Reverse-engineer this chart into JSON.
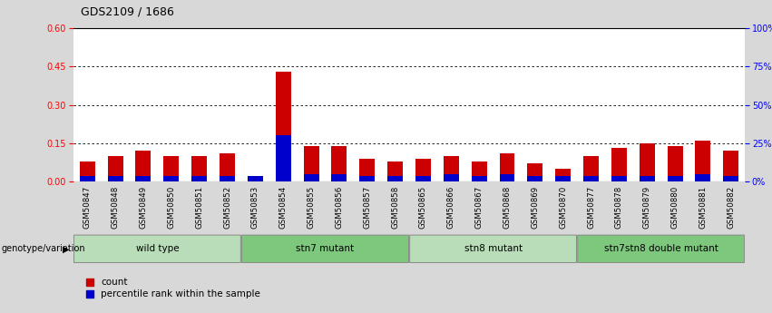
{
  "title": "GDS2109 / 1686",
  "samples": [
    "GSM50847",
    "GSM50848",
    "GSM50849",
    "GSM50850",
    "GSM50851",
    "GSM50852",
    "GSM50853",
    "GSM50854",
    "GSM50855",
    "GSM50856",
    "GSM50857",
    "GSM50858",
    "GSM50865",
    "GSM50866",
    "GSM50867",
    "GSM50868",
    "GSM50869",
    "GSM50870",
    "GSM50877",
    "GSM50878",
    "GSM50879",
    "GSM50880",
    "GSM50881",
    "GSM50882"
  ],
  "red_values": [
    0.08,
    0.1,
    0.12,
    0.1,
    0.1,
    0.11,
    0.0,
    0.43,
    0.14,
    0.14,
    0.09,
    0.08,
    0.09,
    0.1,
    0.08,
    0.11,
    0.07,
    0.05,
    0.1,
    0.13,
    0.15,
    0.14,
    0.16,
    0.12
  ],
  "blue_values": [
    0.02,
    0.02,
    0.02,
    0.02,
    0.02,
    0.02,
    0.02,
    0.18,
    0.03,
    0.03,
    0.02,
    0.02,
    0.02,
    0.03,
    0.02,
    0.03,
    0.02,
    0.02,
    0.02,
    0.02,
    0.02,
    0.02,
    0.03,
    0.02
  ],
  "groups": [
    {
      "label": "wild type",
      "start": 0,
      "end": 6,
      "color": "#b8ddb8"
    },
    {
      "label": "stn7 mutant",
      "start": 6,
      "end": 12,
      "color": "#7ec87e"
    },
    {
      "label": "stn8 mutant",
      "start": 12,
      "end": 18,
      "color": "#b8ddb8"
    },
    {
      "label": "stn7stn8 double mutant",
      "start": 18,
      "end": 24,
      "color": "#7ec87e"
    }
  ],
  "ylim_left": [
    0,
    0.6
  ],
  "ylim_right": [
    0,
    100
  ],
  "yticks_left": [
    0,
    0.15,
    0.3,
    0.45,
    0.6
  ],
  "yticks_right": [
    0,
    25,
    50,
    75,
    100
  ],
  "ytick_labels_right": [
    "0%",
    "25%",
    "50%",
    "75%",
    "100%"
  ],
  "bar_color_red": "#cc0000",
  "bar_color_blue": "#0000cc",
  "bar_width": 0.55,
  "bg_color": "#d8d8d8",
  "plot_bg": "#ffffff",
  "title_fontsize": 9,
  "genotype_label": "genotype/variation",
  "legend_count": "count",
  "legend_percentile": "percentile rank within the sample"
}
